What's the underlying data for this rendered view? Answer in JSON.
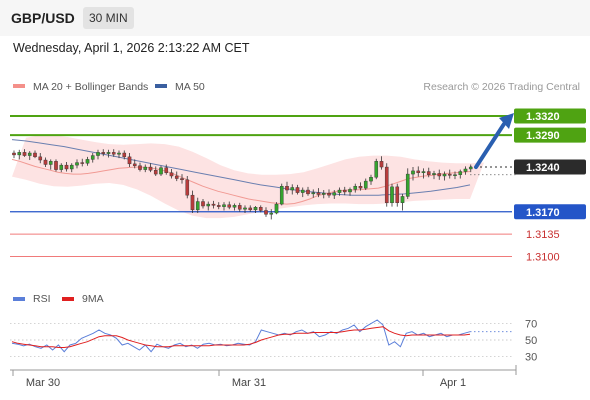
{
  "header": {
    "pair": "GBP/USD",
    "timeframe": "30 MIN"
  },
  "datetime": "Wednesday, April 1, 2026 2:13:22 AM CET",
  "legend": {
    "items": [
      {
        "label": "MA 20 + Bollinger Bands",
        "color": "#f4908a"
      },
      {
        "label": "MA 50",
        "color": "#3a5fa0"
      }
    ],
    "credit": "Research © 2026 Trading Central"
  },
  "colors": {
    "resistance": "#4fa312",
    "support": "#2455c8",
    "secondary_support": "#f07a7a",
    "current": "#2b2b2b",
    "bull_candle": "#35a32e",
    "bear_candle": "#b83c3c",
    "rsi": "#5b7fd9",
    "rsi_ma": "#e02020",
    "arrow": "#2a5fb0"
  },
  "chart_data": [
    {
      "type": "candlestick",
      "title": "",
      "ylim": [
        1.306,
        1.3345
      ],
      "x_ticks": [
        "Mar 30",
        "Mar 31",
        "Apr 1"
      ],
      "levels": [
        {
          "label": "1.3320",
          "value": 1.332,
          "kind": "resistance"
        },
        {
          "label": "1.3290",
          "value": 1.329,
          "kind": "resistance"
        },
        {
          "label": "1.3240",
          "value": 1.324,
          "kind": "current"
        },
        {
          "label": "1.3170",
          "value": 1.317,
          "kind": "support"
        },
        {
          "label": "1.3135",
          "value": 1.3135,
          "kind": "secondary"
        },
        {
          "label": "1.3100",
          "value": 1.31,
          "kind": "secondary"
        }
      ],
      "candles": [
        [
          1.3262,
          1.3266,
          1.3254,
          1.3259
        ],
        [
          1.3259,
          1.3267,
          1.3252,
          1.3263
        ],
        [
          1.3263,
          1.3268,
          1.3256,
          1.3258
        ],
        [
          1.3258,
          1.3265,
          1.3251,
          1.3262
        ],
        [
          1.3262,
          1.3266,
          1.3254,
          1.3256
        ],
        [
          1.3256,
          1.3262,
          1.3246,
          1.3251
        ],
        [
          1.3251,
          1.3255,
          1.324,
          1.3244
        ],
        [
          1.3244,
          1.3252,
          1.3236,
          1.3249
        ],
        [
          1.3249,
          1.3252,
          1.3233,
          1.3236
        ],
        [
          1.3236,
          1.3246,
          1.3232,
          1.3243
        ],
        [
          1.3243,
          1.3248,
          1.3233,
          1.3237
        ],
        [
          1.3237,
          1.3246,
          1.3232,
          1.3243
        ],
        [
          1.3243,
          1.3252,
          1.3238,
          1.3247
        ],
        [
          1.3247,
          1.3253,
          1.3241,
          1.3246
        ],
        [
          1.3246,
          1.3256,
          1.3242,
          1.3252
        ],
        [
          1.3252,
          1.3262,
          1.3247,
          1.3258
        ],
        [
          1.3258,
          1.3267,
          1.3252,
          1.3263
        ],
        [
          1.3263,
          1.3268,
          1.3257,
          1.3261
        ],
        [
          1.3261,
          1.3267,
          1.3255,
          1.3263
        ],
        [
          1.3263,
          1.3268,
          1.3256,
          1.326
        ],
        [
          1.326,
          1.3266,
          1.3254,
          1.3262
        ],
        [
          1.3262,
          1.3266,
          1.3252,
          1.3256
        ],
        [
          1.3256,
          1.3262,
          1.324,
          1.3245
        ],
        [
          1.3245,
          1.3252,
          1.3238,
          1.3242
        ],
        [
          1.3242,
          1.3247,
          1.3233,
          1.3236
        ],
        [
          1.3236,
          1.3244,
          1.3232,
          1.324
        ],
        [
          1.324,
          1.3246,
          1.3232,
          1.3235
        ],
        [
          1.3235,
          1.3241,
          1.3226,
          1.3229
        ],
        [
          1.3229,
          1.3242,
          1.3226,
          1.3239
        ],
        [
          1.3239,
          1.3244,
          1.3228,
          1.3231
        ],
        [
          1.3231,
          1.3237,
          1.3222,
          1.3226
        ],
        [
          1.3226,
          1.3233,
          1.3218,
          1.3222
        ],
        [
          1.3222,
          1.3229,
          1.3214,
          1.322
        ],
        [
          1.322,
          1.3226,
          1.3191,
          1.3196
        ],
        [
          1.3196,
          1.3203,
          1.3168,
          1.3173
        ],
        [
          1.3173,
          1.3192,
          1.3168,
          1.3186
        ],
        [
          1.3186,
          1.319,
          1.3175,
          1.3179
        ],
        [
          1.3179,
          1.3186,
          1.3172,
          1.3182
        ],
        [
          1.3182,
          1.3187,
          1.3175,
          1.318
        ],
        [
          1.318,
          1.3185,
          1.3174,
          1.3178
        ],
        [
          1.3178,
          1.3185,
          1.3172,
          1.3181
        ],
        [
          1.3181,
          1.3186,
          1.3174,
          1.3177
        ],
        [
          1.3177,
          1.3183,
          1.3172,
          1.318
        ],
        [
          1.318,
          1.3184,
          1.317,
          1.3174
        ],
        [
          1.3174,
          1.318,
          1.3168,
          1.3176
        ],
        [
          1.3176,
          1.318,
          1.317,
          1.3173
        ],
        [
          1.3173,
          1.3179,
          1.3168,
          1.3177
        ],
        [
          1.3177,
          1.318,
          1.3169,
          1.3172
        ],
        [
          1.3172,
          1.3177,
          1.3162,
          1.3166
        ],
        [
          1.3166,
          1.3174,
          1.3158,
          1.3168
        ],
        [
          1.3168,
          1.3185,
          1.3166,
          1.3182
        ],
        [
          1.3182,
          1.3214,
          1.318,
          1.321
        ],
        [
          1.321,
          1.3217,
          1.3198,
          1.3204
        ],
        [
          1.3204,
          1.3213,
          1.3197,
          1.3208
        ],
        [
          1.3208,
          1.3212,
          1.3197,
          1.32
        ],
        [
          1.32,
          1.3208,
          1.3193,
          1.3204
        ],
        [
          1.3204,
          1.3209,
          1.3195,
          1.3198
        ],
        [
          1.3198,
          1.3205,
          1.3192,
          1.32
        ],
        [
          1.32,
          1.3207,
          1.3193,
          1.3197
        ],
        [
          1.3197,
          1.3204,
          1.3191,
          1.3199
        ],
        [
          1.3199,
          1.3205,
          1.3192,
          1.3196
        ],
        [
          1.3196,
          1.3204,
          1.319,
          1.32
        ],
        [
          1.32,
          1.3208,
          1.3195,
          1.3204
        ],
        [
          1.3204,
          1.3209,
          1.3196,
          1.3201
        ],
        [
          1.3201,
          1.3208,
          1.3195,
          1.3205
        ],
        [
          1.3205,
          1.3214,
          1.32,
          1.321
        ],
        [
          1.321,
          1.3216,
          1.3203,
          1.3207
        ],
        [
          1.3207,
          1.3222,
          1.3204,
          1.3218
        ],
        [
          1.3218,
          1.3228,
          1.3212,
          1.3224
        ],
        [
          1.3224,
          1.3253,
          1.3221,
          1.3249
        ],
        [
          1.3249,
          1.3257,
          1.3236,
          1.324
        ],
        [
          1.324,
          1.3246,
          1.3178,
          1.3184
        ],
        [
          1.3184,
          1.3214,
          1.3178,
          1.3209
        ],
        [
          1.3209,
          1.3214,
          1.3178,
          1.3184
        ],
        [
          1.3184,
          1.3198,
          1.3172,
          1.3194
        ],
        [
          1.3194,
          1.3238,
          1.319,
          1.3229
        ],
        [
          1.3229,
          1.324,
          1.3219,
          1.3234
        ],
        [
          1.3234,
          1.3241,
          1.3225,
          1.3231
        ],
        [
          1.3231,
          1.3238,
          1.3222,
          1.3233
        ],
        [
          1.3233,
          1.3239,
          1.3224,
          1.3228
        ],
        [
          1.3228,
          1.3234,
          1.3221,
          1.323
        ],
        [
          1.323,
          1.3236,
          1.322,
          1.3226
        ],
        [
          1.3226,
          1.3233,
          1.3219,
          1.3229
        ],
        [
          1.3229,
          1.3236,
          1.3222,
          1.3227
        ],
        [
          1.3227,
          1.3233,
          1.3221,
          1.3228
        ],
        [
          1.3228,
          1.3236,
          1.3222,
          1.3233
        ],
        [
          1.3233,
          1.3241,
          1.3228,
          1.3237
        ],
        [
          1.3237,
          1.3244,
          1.3232,
          1.324
        ]
      ],
      "ma20": [
        1.3252,
        1.3249,
        1.3245,
        1.3241,
        1.3238,
        1.3235,
        1.3232,
        1.323,
        1.3229,
        1.3229,
        1.323,
        1.3232,
        1.3234,
        1.3236,
        1.3238,
        1.3239,
        1.324,
        1.324,
        1.3239,
        1.3237,
        1.3234,
        1.323,
        1.3225,
        1.322,
        1.3215,
        1.321,
        1.3206,
        1.3202,
        1.3199,
        1.3196,
        1.3193,
        1.319,
        1.3188,
        1.3186,
        1.3184,
        1.3183,
        1.3182,
        1.3183,
        1.3186,
        1.319,
        1.3195,
        1.3198,
        1.3201,
        1.3203,
        1.3204,
        1.3204,
        1.3205,
        1.3206,
        1.3207,
        1.321,
        1.3214,
        1.3218,
        1.3222,
        1.3224,
        1.3226,
        1.3227,
        1.3229,
        1.323,
        1.3231,
        1.3232,
        1.3233
      ],
      "ma20_x_start": 17,
      "ma50": [
        1.3283,
        1.3281,
        1.3278,
        1.3275,
        1.3272,
        1.3268,
        1.3264,
        1.326,
        1.3256,
        1.3252,
        1.3248,
        1.3244,
        1.324,
        1.3236,
        1.3232,
        1.3228,
        1.3224,
        1.322,
        1.3216,
        1.3212,
        1.3209,
        1.3206,
        1.3203,
        1.3201,
        1.3199,
        1.3197,
        1.3196,
        1.3196,
        1.3196,
        1.3197,
        1.3198,
        1.32,
        1.3202,
        1.3205,
        1.3208,
        1.3212
      ],
      "ma50_x_start": 0,
      "ma50_x_step": 2.55,
      "band_upper": [
        1.3286,
        1.329,
        1.329,
        1.3287,
        1.3283,
        1.3279,
        1.3276,
        1.3275,
        1.3276,
        1.3277,
        1.3276,
        1.3272,
        1.3264,
        1.3254,
        1.3243,
        1.3235,
        1.323,
        1.3228,
        1.3228,
        1.3229,
        1.3232,
        1.3238,
        1.3245,
        1.3252,
        1.3256,
        1.3258,
        1.3258,
        1.3256,
        1.3252,
        1.3249,
        1.3247,
        1.3246,
        1.3246,
        1.3247
      ],
      "band_lower": [
        1.3225,
        1.322,
        1.3214,
        1.321,
        1.3209,
        1.3211,
        1.3214,
        1.3215,
        1.3212,
        1.3205,
        1.3195,
        1.3183,
        1.3172,
        1.3164,
        1.316,
        1.316,
        1.3162,
        1.3166,
        1.317,
        1.3174,
        1.3177,
        1.318,
        1.3182,
        1.3183,
        1.3183,
        1.3182,
        1.3182,
        1.3183,
        1.3185,
        1.3187,
        1.3188,
        1.3189,
        1.319,
        1.319
      ],
      "band_x_step": 2.7,
      "projection": {
        "from": 1.324,
        "to": 1.332
      }
    },
    {
      "type": "line",
      "title": "",
      "legend": [
        "RSI",
        "9MA"
      ],
      "y_ticks": [
        30,
        50,
        70
      ],
      "ylim": [
        20,
        80
      ],
      "series": [
        {
          "name": "RSI",
          "values": [
            46,
            45,
            43,
            45,
            42,
            40,
            44,
            38,
            44,
            36,
            44,
            46,
            52,
            55,
            58,
            62,
            58,
            56,
            52,
            44,
            46,
            42,
            38,
            44,
            36,
            45,
            42,
            40,
            44,
            46,
            42,
            44,
            40,
            45,
            46,
            44,
            45,
            43,
            44,
            46,
            45,
            44,
            48,
            62,
            60,
            58,
            56,
            58,
            56,
            60,
            62,
            58,
            60,
            54,
            56,
            60,
            58,
            62,
            64,
            68,
            60,
            66,
            70,
            74,
            68,
            44,
            48,
            42,
            58,
            60,
            56,
            58,
            54,
            56,
            58,
            54,
            56,
            56,
            58,
            60
          ]
        },
        {
          "name": "9MA",
          "values": [
            48,
            46,
            45,
            44,
            43,
            42,
            42,
            42,
            41,
            41,
            42,
            44,
            46,
            48,
            51,
            54,
            55,
            55,
            55,
            53,
            50,
            48,
            46,
            44,
            43,
            42,
            42,
            42,
            43,
            43,
            43,
            43,
            43,
            43,
            43,
            44,
            44,
            44,
            44,
            44,
            44,
            45,
            47,
            50,
            52,
            54,
            56,
            57,
            57,
            58,
            58,
            58,
            59,
            59,
            59,
            59,
            59,
            60,
            61,
            62,
            62,
            63,
            64,
            65,
            66,
            61,
            58,
            56,
            55,
            56,
            56,
            56,
            56,
            56,
            56,
            56,
            56,
            56,
            56,
            57
          ]
        }
      ]
    }
  ]
}
